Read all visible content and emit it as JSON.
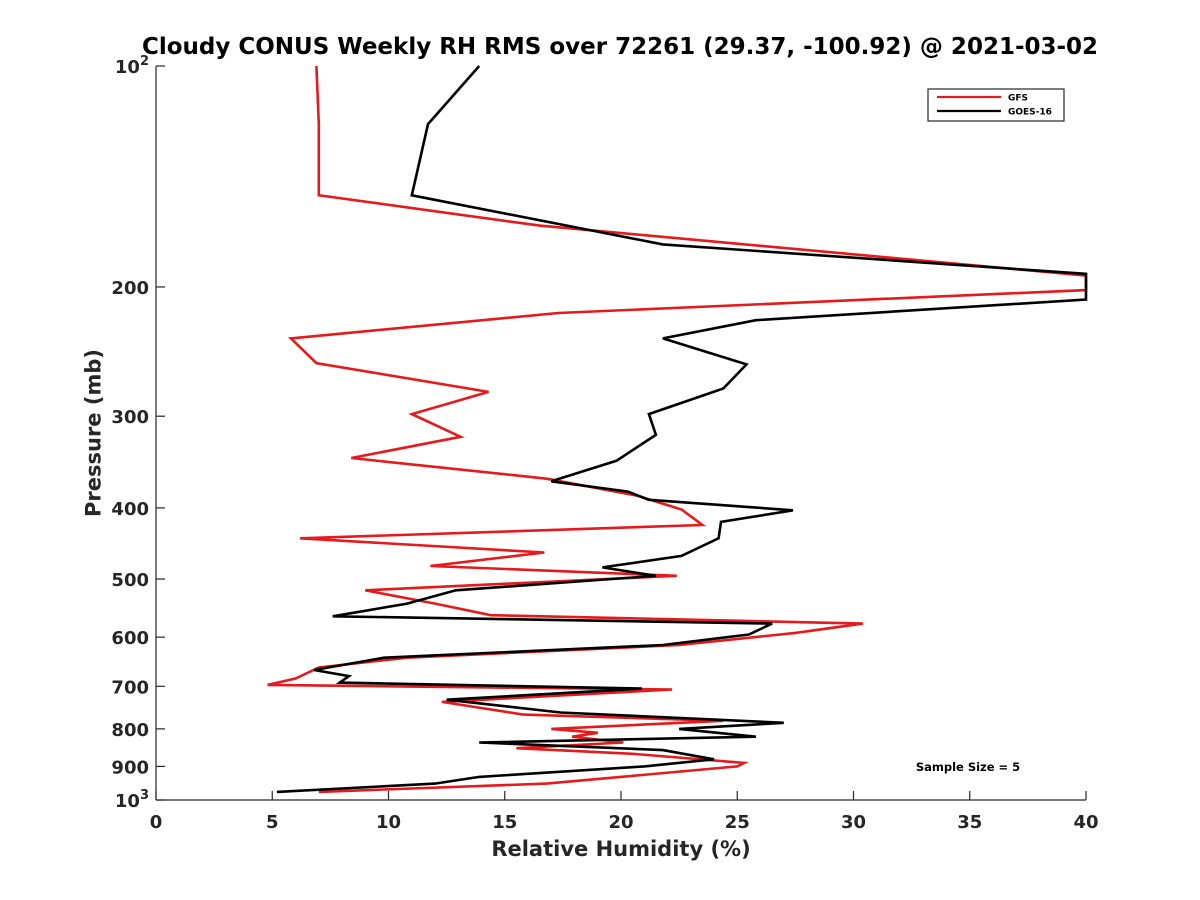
{
  "chart_data": {
    "type": "line",
    "title": "Cloudy CONUS Weekly RH RMS over 72261 (29.37, -100.92) @ 2021-03-02",
    "xlabel": "Relative Humidity (%)",
    "ylabel": "Pressure (mb)",
    "xlim": [
      0,
      40
    ],
    "ylim": [
      100,
      1000
    ],
    "y_scale": "log",
    "y_reversed": true,
    "grid": false,
    "legend_position": "top-right",
    "x_ticks": [
      {
        "value": 0,
        "label": "0"
      },
      {
        "value": 5,
        "label": "5"
      },
      {
        "value": 10,
        "label": "10"
      },
      {
        "value": 15,
        "label": "15"
      },
      {
        "value": 20,
        "label": "20"
      },
      {
        "value": 25,
        "label": "25"
      },
      {
        "value": 30,
        "label": "30"
      },
      {
        "value": 35,
        "label": "35"
      },
      {
        "value": 40,
        "label": "40"
      }
    ],
    "y_ticks": [
      {
        "value": 100,
        "label": "10",
        "sup": "2"
      },
      {
        "value": 200,
        "label": "200",
        "sup": ""
      },
      {
        "value": 300,
        "label": "300",
        "sup": ""
      },
      {
        "value": 400,
        "label": "400",
        "sup": ""
      },
      {
        "value": 500,
        "label": "500",
        "sup": ""
      },
      {
        "value": 600,
        "label": "600",
        "sup": ""
      },
      {
        "value": 700,
        "label": "700",
        "sup": ""
      },
      {
        "value": 800,
        "label": "800",
        "sup": ""
      },
      {
        "value": 900,
        "label": "900",
        "sup": ""
      },
      {
        "value": 1000,
        "label": "10",
        "sup": "3"
      }
    ],
    "annotation": "Sample Size = 5",
    "series": [
      {
        "name": "GFS",
        "color": "#e41a1c",
        "points": [
          [
            6.9,
            100
          ],
          [
            7.0,
            120
          ],
          [
            7.0,
            150
          ],
          [
            16.5,
            165
          ],
          [
            40,
            193
          ],
          [
            40,
            202
          ],
          [
            17.3,
            217
          ],
          [
            5.8,
            235
          ],
          [
            6.9,
            254
          ],
          [
            14.3,
            278
          ],
          [
            11.0,
            298
          ],
          [
            13.1,
            320
          ],
          [
            8.4,
            342
          ],
          [
            16.8,
            365
          ],
          [
            20.7,
            385
          ],
          [
            22.6,
            402
          ],
          [
            23.5,
            422
          ],
          [
            6.2,
            440
          ],
          [
            16.7,
            460
          ],
          [
            11.8,
            480
          ],
          [
            22.4,
            495
          ],
          [
            9.0,
            518
          ],
          [
            12.0,
            540
          ],
          [
            14.4,
            560
          ],
          [
            30.4,
            575
          ],
          [
            27.5,
            592
          ],
          [
            22.5,
            615
          ],
          [
            10.8,
            640
          ],
          [
            7.0,
            660
          ],
          [
            6.0,
            683
          ],
          [
            4.8,
            697
          ],
          [
            22.2,
            707
          ],
          [
            12.3,
            735
          ],
          [
            15.8,
            765
          ],
          [
            24.4,
            780
          ],
          [
            17.0,
            800
          ],
          [
            19.0,
            810
          ],
          [
            17.9,
            820
          ],
          [
            20.1,
            835
          ],
          [
            15.5,
            850
          ],
          [
            20.5,
            865
          ],
          [
            25.3,
            890
          ],
          [
            25.0,
            900
          ],
          [
            16.8,
            950
          ],
          [
            7.0,
            975
          ]
        ]
      },
      {
        "name": "GOES-16",
        "color": "#000000",
        "points": [
          [
            13.9,
            100
          ],
          [
            11.7,
            120
          ],
          [
            11.0,
            150
          ],
          [
            21.8,
            175
          ],
          [
            40,
            192
          ],
          [
            40,
            208
          ],
          [
            25.8,
            222
          ],
          [
            21.8,
            235
          ],
          [
            25.4,
            255
          ],
          [
            24.4,
            275
          ],
          [
            21.2,
            298
          ],
          [
            21.5,
            318
          ],
          [
            19.8,
            345
          ],
          [
            17.0,
            368
          ],
          [
            20.3,
            380
          ],
          [
            21.2,
            390
          ],
          [
            27.4,
            403
          ],
          [
            24.3,
            418
          ],
          [
            24.2,
            440
          ],
          [
            22.6,
            465
          ],
          [
            19.2,
            482
          ],
          [
            21.5,
            495
          ],
          [
            12.9,
            518
          ],
          [
            10.8,
            540
          ],
          [
            7.6,
            562
          ],
          [
            26.5,
            575
          ],
          [
            25.5,
            595
          ],
          [
            21.8,
            615
          ],
          [
            9.8,
            640
          ],
          [
            6.8,
            665
          ],
          [
            8.3,
            678
          ],
          [
            7.9,
            692
          ],
          [
            20.9,
            705
          ],
          [
            12.5,
            730
          ],
          [
            17.4,
            760
          ],
          [
            27.0,
            785
          ],
          [
            22.5,
            800
          ],
          [
            25.8,
            820
          ],
          [
            13.9,
            835
          ],
          [
            21.8,
            855
          ],
          [
            24.0,
            880
          ],
          [
            21.0,
            900
          ],
          [
            13.9,
            930
          ],
          [
            12.0,
            950
          ],
          [
            5.2,
            975
          ]
        ]
      }
    ]
  }
}
